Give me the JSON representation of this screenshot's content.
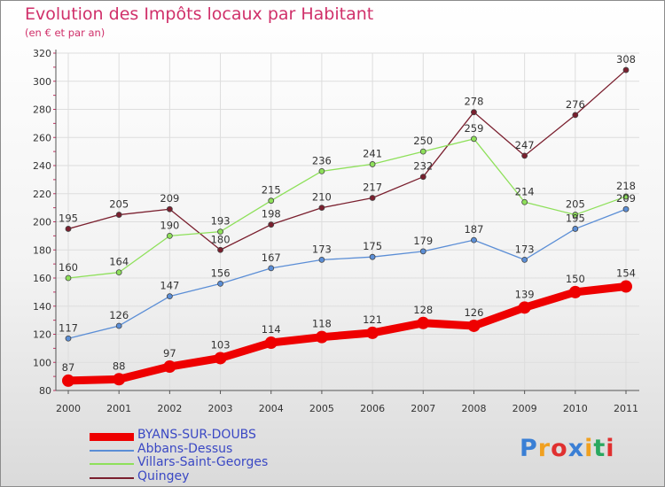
{
  "chart_data": {
    "type": "line",
    "title": "Evolution des Impôts locaux par Habitant",
    "subtitle": "(en € et par an)",
    "x": [
      "2000",
      "2001",
      "2002",
      "2003",
      "2004",
      "2005",
      "2006",
      "2007",
      "2008",
      "2009",
      "2010",
      "2011"
    ],
    "ylim": [
      80,
      320
    ],
    "yticks": [
      80,
      100,
      120,
      140,
      160,
      180,
      200,
      220,
      240,
      260,
      280,
      300,
      320
    ],
    "grid": true,
    "legend_position": "bottom-left",
    "series": [
      {
        "name": "BYANS-SUR-DOUBS",
        "color": "#ee0000",
        "values": [
          87,
          88,
          97,
          103,
          114,
          118,
          121,
          128,
          126,
          139,
          150,
          154
        ]
      },
      {
        "name": "Abbans-Dessus",
        "color": "#5b8ed6",
        "values": [
          117,
          126,
          147,
          156,
          167,
          173,
          175,
          179,
          187,
          173,
          195,
          209
        ]
      },
      {
        "name": "Villars-Saint-Georges",
        "color": "#8ee05a",
        "values": [
          160,
          164,
          190,
          193,
          215,
          236,
          241,
          250,
          259,
          214,
          205,
          218
        ]
      },
      {
        "name": "Quingey",
        "color": "#7a1f2e",
        "values": [
          195,
          205,
          209,
          180,
          198,
          210,
          217,
          232,
          278,
          247,
          276,
          308
        ]
      }
    ]
  },
  "logo": {
    "text": "Proxiti"
  }
}
